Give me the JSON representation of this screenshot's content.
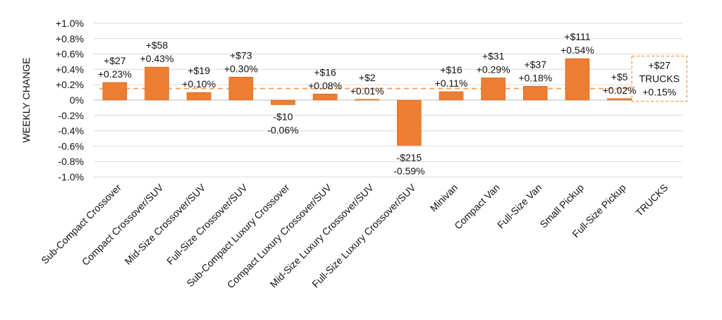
{
  "colors": {
    "bar": "#ED7D31",
    "bar_stroke": "#C8651F",
    "grid": "#D9D9D9",
    "avg_line": "#F4A460",
    "text": "#111111"
  },
  "chart_data": {
    "type": "bar",
    "title": "",
    "xlabel": "",
    "ylabel": "WEEKLY CHANGE",
    "ylim": [
      -1.0,
      1.0
    ],
    "ytick_values": [
      1.0,
      0.8,
      0.6,
      0.4,
      0.2,
      0.0,
      -0.2,
      -0.4,
      -0.6,
      -0.8,
      -1.0
    ],
    "ytick_labels": [
      "+1.0%",
      "+0.8%",
      "+0.6%",
      "+0.4%",
      "+0.2%",
      "0%",
      "-0.2%",
      "-0.4%",
      "-0.6%",
      "-0.8%",
      "-1.0%"
    ],
    "grid": true,
    "categories": [
      "Sub-Compact Crossover",
      "Compact Crossover/SUV",
      "Mid-Size Crossover/SUV",
      "Full-Size Crossover/SUV",
      "Sub-Compact Luxury Crossover",
      "Compact Luxury Crossover/SUV",
      "Mid-Size Luxury Crossover/SUV",
      "Full-Size Luxury Crossover/SUV",
      "Minivan",
      "Compact Van",
      "Full-Size Van",
      "Small Pickup",
      "Full-Size Pickup",
      "TRUCKS"
    ],
    "values": [
      0.23,
      0.43,
      0.1,
      0.3,
      -0.06,
      0.08,
      0.01,
      -0.59,
      0.11,
      0.29,
      0.18,
      0.54,
      0.02,
      null
    ],
    "dollar_labels": [
      "+$27",
      "+$58",
      "+$19",
      "+$73",
      "-$10",
      "+$16",
      "+$2",
      "-$215",
      "+$16",
      "+$31",
      "+$37",
      "+$111",
      "+$5",
      ""
    ],
    "percent_labels": [
      "+0.23%",
      "+0.43%",
      "+0.10%",
      "+0.30%",
      "-0.06%",
      "+0.08%",
      "+0.01%",
      "-0.59%",
      "+0.11%",
      "+0.29%",
      "+0.18%",
      "+0.54%",
      "+0.02%",
      ""
    ],
    "average_line": {
      "value": 0.15,
      "dollar_label": "+$27",
      "name_label": "TRUCKS",
      "percent_label": "+0.15%"
    }
  }
}
